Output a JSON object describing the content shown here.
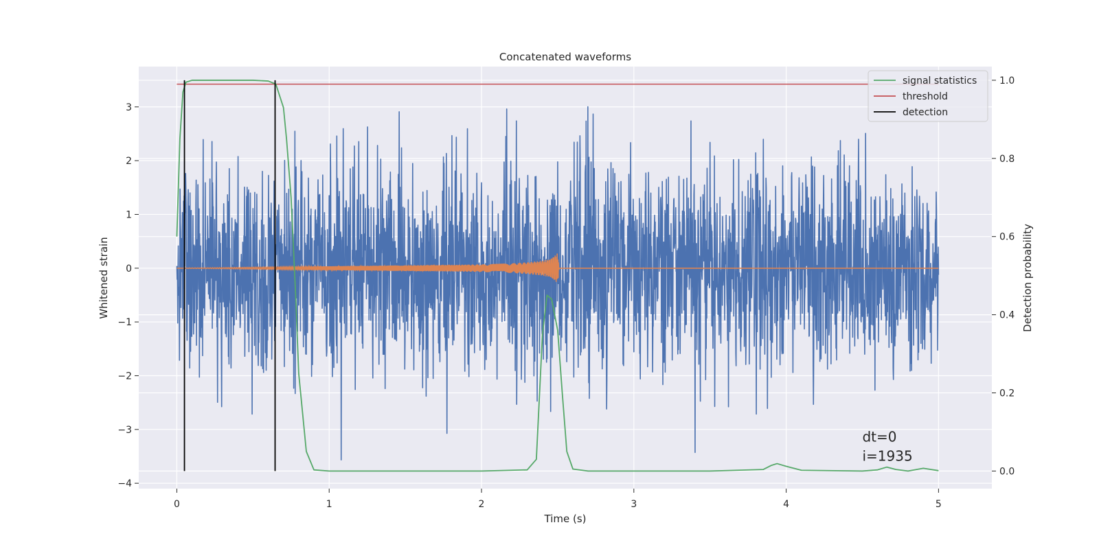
{
  "chart_data": {
    "type": "line",
    "title": "Concatenated waveforms",
    "xlabel": "Time (s)",
    "ylabel": "Whitened strain",
    "y2label": "Detection probability",
    "xlim": [
      -0.25,
      5.35
    ],
    "ylim": [
      -4.1,
      3.75
    ],
    "y2lim": [
      -0.045,
      1.035
    ],
    "xticks": [
      0,
      1,
      2,
      3,
      4,
      5
    ],
    "yticks": [
      -4,
      -3,
      -2,
      -1,
      0,
      1,
      2,
      3
    ],
    "yticklabels": [
      "−4",
      "−3",
      "−2",
      "−1",
      "0",
      "1",
      "2",
      "3"
    ],
    "y2ticks": [
      0.0,
      0.2,
      0.4,
      0.6,
      0.8,
      1.0
    ],
    "y2ticklabels": [
      "0.0",
      "0.2",
      "0.4",
      "0.6",
      "0.8",
      "1.0"
    ],
    "grid": true,
    "legend_position": "top-right",
    "colors": {
      "strain": "#4c72b0",
      "injection": "#dd8452",
      "signal_statistics": "#55a868",
      "threshold": "#c44e52",
      "detection": "#000000",
      "background": "#eaeaf2",
      "grid": "#ffffff"
    },
    "series": [
      {
        "key": "strain",
        "axis": "left",
        "x_range": [
          0,
          5
        ],
        "envelope_typical": [
          -1.6,
          2.0
        ],
        "peak_max": 3.4,
        "peak_min": -3.75
      },
      {
        "key": "injection",
        "axis": "left",
        "x": [
          0.0,
          2.0,
          2.1,
          2.2,
          2.3,
          2.4,
          2.45,
          2.5,
          2.51,
          5.0
        ],
        "amplitude": [
          0.0,
          0.07,
          0.08,
          0.09,
          0.11,
          0.14,
          0.17,
          0.28,
          0.0,
          0.0
        ]
      },
      {
        "name": "signal statistics",
        "key": "signal_statistics",
        "axis": "right",
        "x": [
          0.0,
          0.02,
          0.04,
          0.06,
          0.1,
          0.3,
          0.5,
          0.6,
          0.65,
          0.7,
          0.72,
          0.75,
          0.78,
          0.8,
          0.85,
          0.9,
          1.0,
          1.5,
          2.0,
          2.3,
          2.36,
          2.4,
          2.43,
          2.46,
          2.5,
          2.53,
          2.56,
          2.6,
          2.7,
          3.0,
          3.5,
          3.85,
          3.9,
          3.94,
          4.0,
          4.1,
          4.5,
          4.6,
          4.66,
          4.72,
          4.8,
          4.9,
          5.0
        ],
        "y": [
          0.6,
          0.85,
          0.97,
          0.995,
          1.0,
          1.0,
          1.0,
          0.998,
          0.99,
          0.93,
          0.85,
          0.7,
          0.45,
          0.25,
          0.05,
          0.003,
          0.0,
          0.0,
          0.0,
          0.003,
          0.03,
          0.35,
          0.45,
          0.44,
          0.36,
          0.2,
          0.05,
          0.005,
          0.0,
          0.0,
          0.0,
          0.004,
          0.014,
          0.019,
          0.012,
          0.002,
          0.0,
          0.003,
          0.01,
          0.004,
          0.0,
          0.007,
          0.001
        ]
      },
      {
        "name": "threshold",
        "key": "threshold",
        "axis": "right",
        "x": [
          0,
          5
        ],
        "y": [
          0.99,
          0.99
        ]
      },
      {
        "name": "detection",
        "key": "detection",
        "axis": "right",
        "x": [
          0.05,
          0.645
        ],
        "y_range": [
          0.0,
          1.0
        ]
      }
    ],
    "legend": [
      "signal statistics",
      "threshold",
      "detection"
    ],
    "annotations": [
      "dt=0",
      "i=1935"
    ],
    "annotation_position": {
      "x": 4.5,
      "y": -3.2
    }
  }
}
